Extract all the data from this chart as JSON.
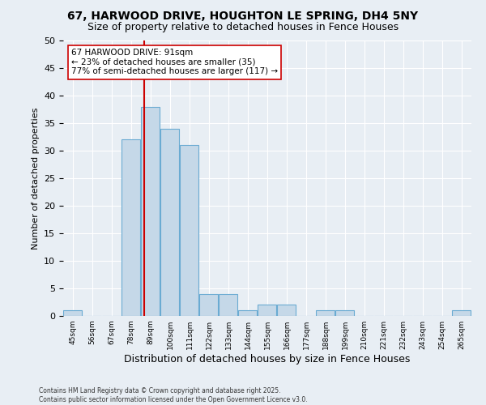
{
  "title": "67, HARWOOD DRIVE, HOUGHTON LE SPRING, DH4 5NY",
  "subtitle": "Size of property relative to detached houses in Fence Houses",
  "xlabel": "Distribution of detached houses by size in Fence Houses",
  "ylabel": "Number of detached properties",
  "bins": [
    45,
    56,
    67,
    78,
    89,
    100,
    111,
    122,
    133,
    144,
    155,
    166,
    177,
    188,
    199,
    210,
    221,
    232,
    243,
    254,
    265
  ],
  "values": [
    1,
    0,
    0,
    32,
    38,
    34,
    31,
    4,
    4,
    1,
    2,
    2,
    0,
    1,
    1,
    0,
    0,
    0,
    0,
    0,
    1
  ],
  "bar_color": "#c5d8e8",
  "bar_edge_color": "#6aabd2",
  "ref_line_x": 91,
  "ref_line_color": "#cc0000",
  "annotation_line1": "67 HARWOOD DRIVE: 91sqm",
  "annotation_line2": "← 23% of detached houses are smaller (35)",
  "annotation_line3": "77% of semi-detached houses are larger (117) →",
  "annotation_box_color": "#ffffff",
  "annotation_box_edge": "#cc0000",
  "ylim": [
    0,
    50
  ],
  "yticks": [
    0,
    5,
    10,
    15,
    20,
    25,
    30,
    35,
    40,
    45,
    50
  ],
  "background_color": "#e8eef4",
  "grid_color": "#ffffff",
  "title_fontsize": 10,
  "subtitle_fontsize": 9,
  "footer_text": "Contains HM Land Registry data © Crown copyright and database right 2025.\nContains public sector information licensed under the Open Government Licence v3.0."
}
